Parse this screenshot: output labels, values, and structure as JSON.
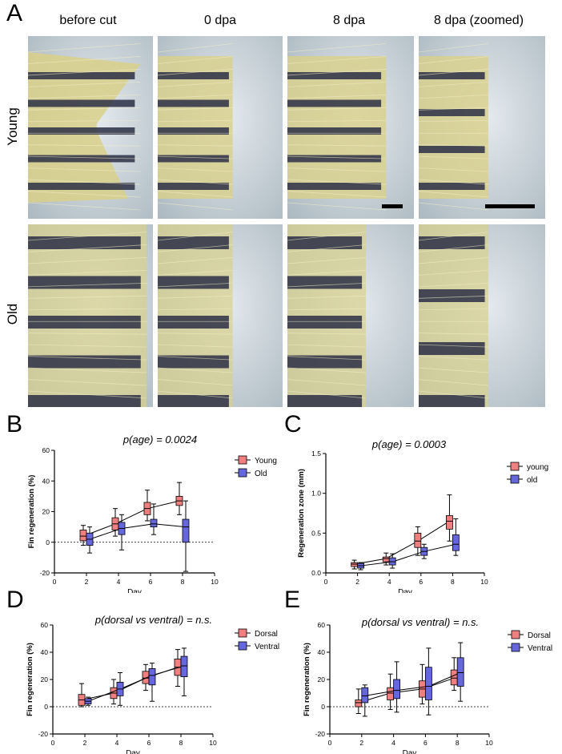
{
  "panel_a": {
    "letter": "A",
    "columns": [
      "before cut",
      "0 dpa",
      "8 dpa",
      "8 dpa (zoomed)"
    ],
    "rows": [
      "Young",
      "Old"
    ],
    "bg_color": "#c9d3d9",
    "fin_yellow": "#d9d08a",
    "stripe_dark": "#2b2f45"
  },
  "chart_data": [
    {
      "type": "box",
      "panel": "B",
      "title": "p(age) = 0.0024",
      "xlabel": "Day",
      "ylabel": "Fin regeneration (%)",
      "xlim": [
        0,
        10
      ],
      "ylim": [
        -20,
        60
      ],
      "xticks": [
        0,
        2,
        4,
        6,
        8,
        10
      ],
      "yticks": [
        -20,
        0,
        20,
        40,
        60
      ],
      "zero_line": true,
      "legend_position": "top-right",
      "series": [
        {
          "name": "Young",
          "color": "#f08080",
          "offset": -0.2,
          "x": [
            2,
            4,
            6,
            8
          ],
          "median": [
            4,
            12,
            22,
            27
          ],
          "q1": [
            1,
            8,
            18,
            24
          ],
          "q3": [
            8,
            16,
            26,
            30
          ],
          "min": [
            -2,
            4,
            14,
            18
          ],
          "max": [
            11,
            22,
            34,
            39
          ]
        },
        {
          "name": "Old",
          "color": "#6666dd",
          "offset": 0.2,
          "x": [
            2,
            4,
            6,
            8
          ],
          "median": [
            2,
            9,
            12,
            10
          ],
          "q1": [
            -2,
            5,
            10,
            0
          ],
          "q3": [
            6,
            13,
            15,
            15
          ],
          "min": [
            -7,
            -5,
            5,
            -19
          ],
          "max": [
            10,
            18,
            25,
            27
          ]
        }
      ]
    },
    {
      "type": "box",
      "panel": "C",
      "title": "p(age) = 0.0003",
      "xlabel": "Day",
      "ylabel": "Regeneration zone (mm)",
      "xlim": [
        0,
        10
      ],
      "ylim": [
        0,
        1.5
      ],
      "xticks": [
        0,
        2,
        4,
        6,
        8,
        10
      ],
      "yticks": [
        0.0,
        0.5,
        1.0,
        1.5
      ],
      "zero_line": false,
      "legend_position": "top-right",
      "series": [
        {
          "name": "young",
          "color": "#f08080",
          "offset": -0.2,
          "x": [
            2,
            4,
            6,
            8
          ],
          "median": [
            0.11,
            0.18,
            0.4,
            0.65
          ],
          "q1": [
            0.08,
            0.14,
            0.32,
            0.55
          ],
          "q3": [
            0.13,
            0.2,
            0.5,
            0.72
          ],
          "min": [
            0.05,
            0.1,
            0.22,
            0.4
          ],
          "max": [
            0.16,
            0.25,
            0.58,
            0.98
          ]
        },
        {
          "name": "old",
          "color": "#6666dd",
          "offset": 0.2,
          "x": [
            2,
            4,
            6,
            8
          ],
          "median": [
            0.09,
            0.14,
            0.27,
            0.36
          ],
          "q1": [
            0.06,
            0.1,
            0.22,
            0.28
          ],
          "q3": [
            0.12,
            0.19,
            0.32,
            0.48
          ],
          "min": [
            0.04,
            0.06,
            0.18,
            0.22
          ],
          "max": [
            0.13,
            0.24,
            0.36,
            0.68
          ]
        }
      ]
    },
    {
      "type": "box",
      "panel": "D",
      "title": "p(dorsal vs ventral) = n.s.",
      "xlabel": "Day",
      "ylabel": "Fin regeneration (%)",
      "xlim": [
        0,
        10
      ],
      "ylim": [
        -20,
        60
      ],
      "xticks": [
        0,
        2,
        4,
        6,
        8,
        10
      ],
      "yticks": [
        -20,
        0,
        20,
        40,
        60
      ],
      "zero_line": true,
      "legend_position": "top-right",
      "series": [
        {
          "name": "Dorsal",
          "color": "#f08080",
          "offset": -0.2,
          "x": [
            2,
            4,
            6,
            8
          ],
          "median": [
            5,
            10,
            21,
            29
          ],
          "q1": [
            1,
            6,
            17,
            23
          ],
          "q3": [
            9,
            14,
            26,
            35
          ],
          "min": [
            0,
            2,
            12,
            15
          ],
          "max": [
            17,
            20,
            31,
            42
          ]
        },
        {
          "name": "Ventral",
          "color": "#6666dd",
          "offset": 0.2,
          "x": [
            2,
            4,
            6,
            8
          ],
          "median": [
            4,
            13,
            23,
            30
          ],
          "q1": [
            2,
            8,
            16,
            22
          ],
          "q3": [
            6,
            18,
            28,
            37
          ],
          "min": [
            1,
            1,
            4,
            8
          ],
          "max": [
            7,
            25,
            32,
            43
          ]
        }
      ]
    },
    {
      "type": "box",
      "panel": "E",
      "title": "p(dorsal vs ventral) = n.s.",
      "xlabel": "Day",
      "ylabel": "Fin regeneration (%)",
      "xlim": [
        0,
        10
      ],
      "ylim": [
        -20,
        60
      ],
      "xticks": [
        0,
        2,
        4,
        6,
        8,
        10
      ],
      "yticks": [
        -20,
        0,
        20,
        40,
        60
      ],
      "zero_line": true,
      "legend_position": "top-right",
      "series": [
        {
          "name": "Dorsal",
          "color": "#f08080",
          "offset": -0.2,
          "x": [
            2,
            4,
            6,
            8
          ],
          "median": [
            3,
            10,
            13,
            21
          ],
          "q1": [
            0,
            5,
            7,
            16
          ],
          "q3": [
            5,
            14,
            19,
            27
          ],
          "min": [
            -5,
            -2,
            2,
            12
          ],
          "max": [
            13,
            24,
            31,
            36
          ]
        },
        {
          "name": "Ventral",
          "color": "#6666dd",
          "offset": 0.2,
          "x": [
            2,
            4,
            6,
            8
          ],
          "median": [
            8,
            12,
            15,
            25
          ],
          "q1": [
            3,
            6,
            5,
            15
          ],
          "q3": [
            14,
            20,
            29,
            36
          ],
          "min": [
            -7,
            -4,
            -6,
            4
          ],
          "max": [
            16,
            33,
            43,
            47
          ]
        }
      ]
    }
  ]
}
